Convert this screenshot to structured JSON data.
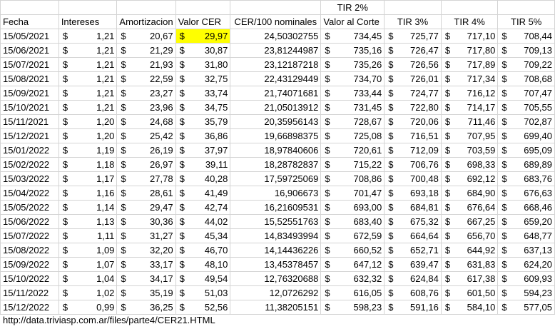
{
  "sheet": {
    "top_header": {
      "tir2": "TIR 2%"
    },
    "headers": {
      "fecha": "Fecha",
      "intereses": "Intereses",
      "amortizacion": "Amortizacion",
      "valor_cer": "Valor CER",
      "cer100": "CER/100 nominales",
      "valor_corte": "Valor al Corte",
      "tir3": "TIR 3%",
      "tir4": "TIR 4%",
      "tir5": "TIR 5%"
    },
    "currency": "$",
    "highlight_color": "#ffff00",
    "rows": [
      {
        "fecha": "15/05/2021",
        "intereses": "1,21",
        "amortizacion": "20,67",
        "valor_cer": "29,97",
        "cer100": "24,50302755",
        "valor_corte": "734,45",
        "tir3": "725,77",
        "tir4": "717,10",
        "tir5": "708,44"
      },
      {
        "fecha": "15/06/2021",
        "intereses": "1,21",
        "amortizacion": "21,29",
        "valor_cer": "30,87",
        "cer100": "23,81244987",
        "valor_corte": "735,16",
        "tir3": "726,47",
        "tir4": "717,80",
        "tir5": "709,13"
      },
      {
        "fecha": "15/07/2021",
        "intereses": "1,21",
        "amortizacion": "21,93",
        "valor_cer": "31,80",
        "cer100": "23,12187218",
        "valor_corte": "735,26",
        "tir3": "726,56",
        "tir4": "717,89",
        "tir5": "709,22"
      },
      {
        "fecha": "15/08/2021",
        "intereses": "1,21",
        "amortizacion": "22,59",
        "valor_cer": "32,75",
        "cer100": "22,43129449",
        "valor_corte": "734,70",
        "tir3": "726,01",
        "tir4": "717,34",
        "tir5": "708,68"
      },
      {
        "fecha": "15/09/2021",
        "intereses": "1,21",
        "amortizacion": "23,27",
        "valor_cer": "33,74",
        "cer100": "21,74071681",
        "valor_corte": "733,44",
        "tir3": "724,77",
        "tir4": "716,12",
        "tir5": "707,47"
      },
      {
        "fecha": "15/10/2021",
        "intereses": "1,21",
        "amortizacion": "23,96",
        "valor_cer": "34,75",
        "cer100": "21,05013912",
        "valor_corte": "731,45",
        "tir3": "722,80",
        "tir4": "714,17",
        "tir5": "705,55"
      },
      {
        "fecha": "15/11/2021",
        "intereses": "1,20",
        "amortizacion": "24,68",
        "valor_cer": "35,79",
        "cer100": "20,35956143",
        "valor_corte": "728,67",
        "tir3": "720,06",
        "tir4": "711,46",
        "tir5": "702,87"
      },
      {
        "fecha": "15/12/2021",
        "intereses": "1,20",
        "amortizacion": "25,42",
        "valor_cer": "36,86",
        "cer100": "19,66898375",
        "valor_corte": "725,08",
        "tir3": "716,51",
        "tir4": "707,95",
        "tir5": "699,40"
      },
      {
        "fecha": "15/01/2022",
        "intereses": "1,19",
        "amortizacion": "26,19",
        "valor_cer": "37,97",
        "cer100": "18,97840606",
        "valor_corte": "720,61",
        "tir3": "712,09",
        "tir4": "703,59",
        "tir5": "695,09"
      },
      {
        "fecha": "15/02/2022",
        "intereses": "1,18",
        "amortizacion": "26,97",
        "valor_cer": "39,11",
        "cer100": "18,28782837",
        "valor_corte": "715,22",
        "tir3": "706,76",
        "tir4": "698,33",
        "tir5": "689,89"
      },
      {
        "fecha": "15/03/2022",
        "intereses": "1,17",
        "amortizacion": "27,78",
        "valor_cer": "40,28",
        "cer100": "17,59725069",
        "valor_corte": "708,86",
        "tir3": "700,48",
        "tir4": "692,12",
        "tir5": "683,76"
      },
      {
        "fecha": "15/04/2022",
        "intereses": "1,16",
        "amortizacion": "28,61",
        "valor_cer": "41,49",
        "cer100": "16,906673",
        "valor_corte": "701,47",
        "tir3": "693,18",
        "tir4": "684,90",
        "tir5": "676,63"
      },
      {
        "fecha": "15/05/2022",
        "intereses": "1,14",
        "amortizacion": "29,47",
        "valor_cer": "42,74",
        "cer100": "16,21609531",
        "valor_corte": "693,00",
        "tir3": "684,81",
        "tir4": "676,64",
        "tir5": "668,46"
      },
      {
        "fecha": "15/06/2022",
        "intereses": "1,13",
        "amortizacion": "30,36",
        "valor_cer": "44,02",
        "cer100": "15,52551763",
        "valor_corte": "683,40",
        "tir3": "675,32",
        "tir4": "667,25",
        "tir5": "659,20"
      },
      {
        "fecha": "15/07/2022",
        "intereses": "1,11",
        "amortizacion": "31,27",
        "valor_cer": "45,34",
        "cer100": "14,83493994",
        "valor_corte": "672,59",
        "tir3": "664,64",
        "tir4": "656,70",
        "tir5": "648,77"
      },
      {
        "fecha": "15/08/2022",
        "intereses": "1,09",
        "amortizacion": "32,20",
        "valor_cer": "46,70",
        "cer100": "14,14436226",
        "valor_corte": "660,52",
        "tir3": "652,71",
        "tir4": "644,92",
        "tir5": "637,13"
      },
      {
        "fecha": "15/09/2022",
        "intereses": "1,07",
        "amortizacion": "33,17",
        "valor_cer": "48,10",
        "cer100": "13,45378457",
        "valor_corte": "647,12",
        "tir3": "639,47",
        "tir4": "631,83",
        "tir5": "624,20"
      },
      {
        "fecha": "15/10/2022",
        "intereses": "1,04",
        "amortizacion": "34,17",
        "valor_cer": "49,54",
        "cer100": "12,76320688",
        "valor_corte": "632,32",
        "tir3": "624,84",
        "tir4": "617,38",
        "tir5": "609,93"
      },
      {
        "fecha": "15/11/2022",
        "intereses": "1,02",
        "amortizacion": "35,19",
        "valor_cer": "51,03",
        "cer100": "12,0726292",
        "valor_corte": "616,05",
        "tir3": "608,76",
        "tir4": "601,50",
        "tir5": "594,23"
      },
      {
        "fecha": "15/12/2022",
        "intereses": "0,99",
        "amortizacion": "36,25",
        "valor_cer": "52,56",
        "cer100": "11,38205151",
        "valor_corte": "598,23",
        "tir3": "591,16",
        "tir4": "584,10",
        "tir5": "577,05"
      }
    ]
  },
  "footer": {
    "url": "http://data.triviasp.com.ar/files/parte4/CER21.HTML"
  }
}
